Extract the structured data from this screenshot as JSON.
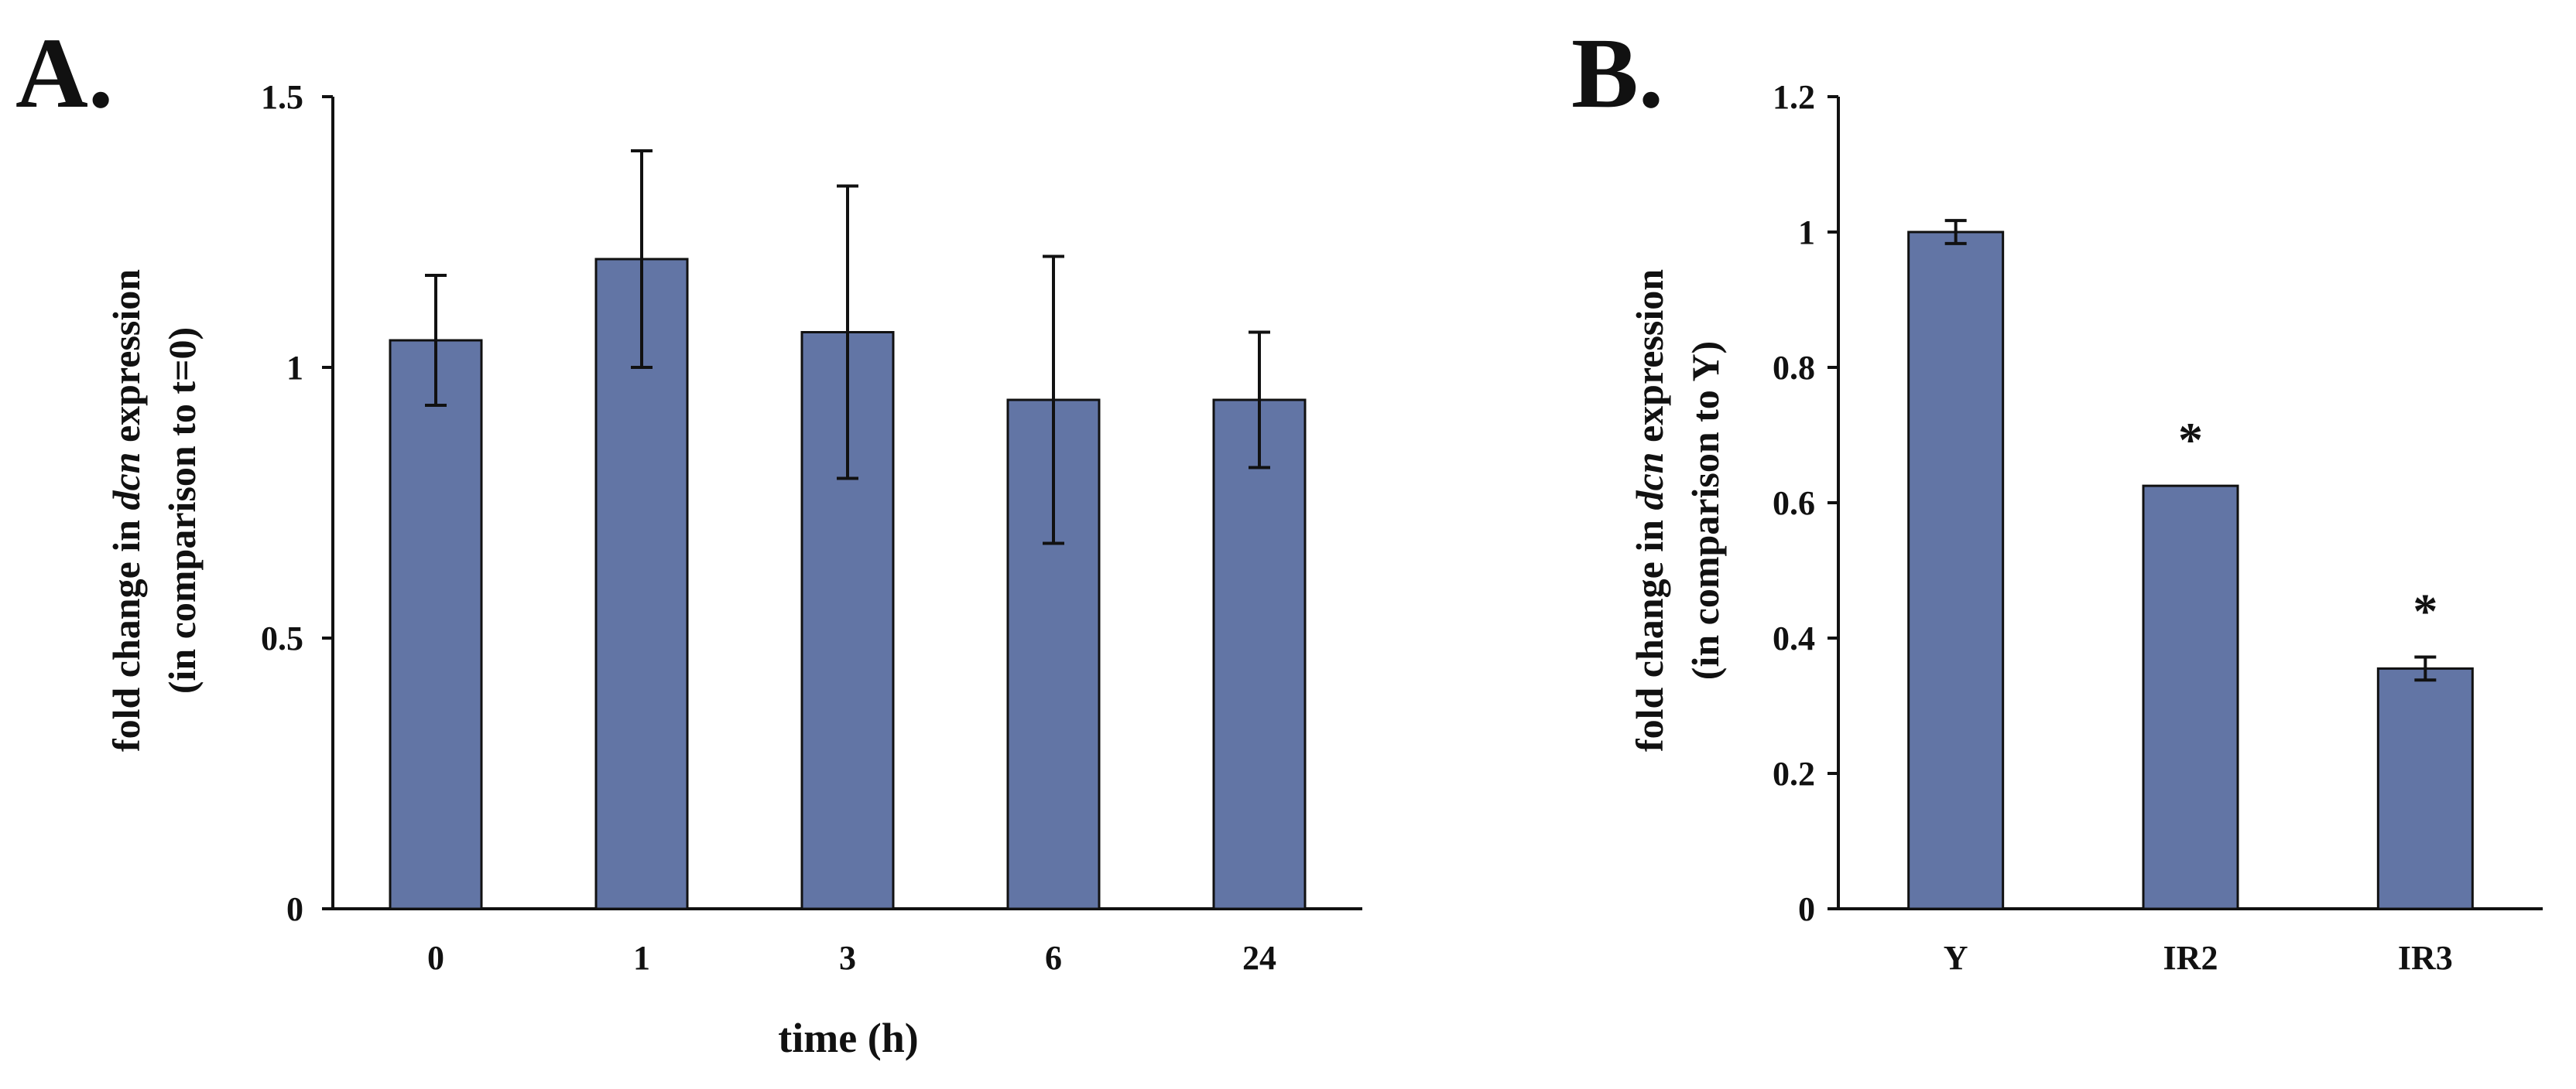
{
  "chart_data": [
    {
      "panel": "A.",
      "type": "bar",
      "xlabel": "time (h)",
      "ylabel": {
        "line1_pre": "fold change in ",
        "line1_gene": "dcn",
        "line1_post": " expression",
        "line2": "(in comparison to t=0)"
      },
      "ylim": [
        0,
        1.5
      ],
      "yticks": [
        "0",
        "0.5",
        "1",
        "1.5"
      ],
      "ytick_values": [
        0,
        0.5,
        1,
        1.5
      ],
      "categories": [
        "0",
        "1",
        "3",
        "6",
        "24"
      ],
      "values": [
        1.05,
        1.2,
        1.065,
        0.94,
        0.94
      ],
      "errors": [
        0.12,
        0.2,
        0.27,
        0.265,
        0.125
      ],
      "annotations": [
        "",
        "",
        "",
        "",
        ""
      ],
      "color": "#6275a5"
    },
    {
      "panel": "B.",
      "type": "bar",
      "xlabel": "",
      "ylabel": {
        "line1_pre": "fold change in ",
        "line1_gene": "dcn",
        "line1_post": " expression",
        "line2": "(in comparison to Y)"
      },
      "ylim": [
        0,
        1.2
      ],
      "yticks": [
        "0",
        "0.2",
        "0.4",
        "0.6",
        "0.8",
        "1",
        "1.2"
      ],
      "ytick_values": [
        0,
        0.2,
        0.4,
        0.6,
        0.8,
        1,
        1.2
      ],
      "categories": [
        "Y",
        "IR2",
        "IR3"
      ],
      "values": [
        1.0,
        0.625,
        0.355
      ],
      "errors": [
        0.017,
        0,
        0.017
      ],
      "annotations": [
        "",
        "*",
        "*"
      ],
      "color": "#6275a5"
    }
  ]
}
